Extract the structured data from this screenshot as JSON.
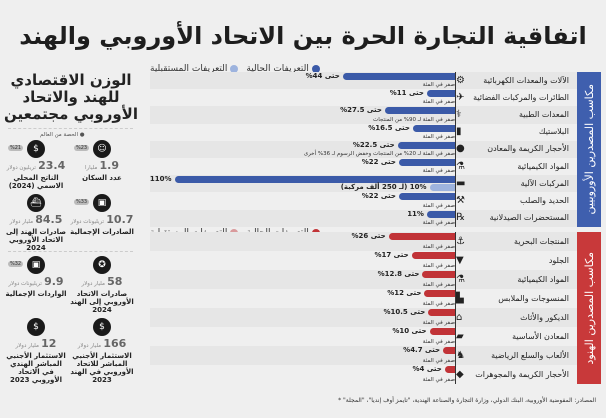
{
  "title": "اتفاقية التجارة الحرة بين الاتحاد الأوروبي والهند",
  "legend": {
    "current": "التعريفات الحالية",
    "future": "التعريفات المستقبلية"
  },
  "colors": {
    "eu_current": "#3b5aa8",
    "eu_future": "#9db3de",
    "in_current": "#c13337",
    "in_future": "#d99a9c"
  },
  "chart_data": [
    {
      "type": "bar",
      "orientation": "horizontal",
      "group": "مكاسب المصدرين الأوروبيين",
      "unit": "%",
      "categories": [
        "الآلات والمعدات الكهربائية",
        "الطائرات والمركبات الفضائية",
        "المعدات الطبية",
        "البلاستيك",
        "الأحجار الكريمة والمعادن",
        "المواد الكيميائية",
        "المركبات الآلية",
        "الحديد والصلب",
        "المستحضرات الصيدلانية"
      ],
      "icons": [
        "gear-icon",
        "airplane-icon",
        "medical-icon",
        "plastic-icon",
        "gem-icon",
        "flask-icon",
        "car-icon",
        "steel-icon",
        "pharma-icon"
      ],
      "series": [
        {
          "name": "التعريفات الحالية",
          "values": [
            44,
            11,
            27.5,
            16.5,
            22.5,
            22,
            110,
            22,
            11
          ],
          "labels": [
            "حتى 44%",
            "حتى 11%",
            "حتى 27.5%",
            "حتى 16.5%",
            "حتى 22.5%",
            "حتى 22%",
            "110%",
            "حتى 22%",
            "11%"
          ]
        },
        {
          "name": "التعريفات المستقبلية",
          "values": [
            0,
            0,
            0,
            0,
            0,
            0,
            10,
            0,
            0
          ],
          "labels": [
            "صفر في المئة",
            "صفر في المئة",
            "صفر في المئة لـ 90% من المنتجات",
            "صفر في المئة",
            "صفر في المئة لـ 20% من المنتجات وخفض الرسوم لـ 36% أخرى",
            "صفر في المئة",
            "10% (لـ 250 ألف مركبة)",
            "صفر في المئة",
            "صفر في المئة"
          ]
        }
      ]
    },
    {
      "type": "bar",
      "orientation": "horizontal",
      "group": "مكاسب المصدرين الهنود",
      "unit": "%",
      "categories": [
        "المنتجات البحرية",
        "الجلود",
        "المواد الكيميائية",
        "المنسوجات والملابس",
        "الديكور والأثاث",
        "المعادن الأساسية",
        "الألعاب والسلع الرياضية",
        "الأحجار الكريمة والمجوهرات"
      ],
      "icons": [
        "anchor-icon",
        "leather-icon",
        "flask-icon",
        "shirt-icon",
        "house-icon",
        "metal-bar-icon",
        "toys-icon",
        "diamond-icon"
      ],
      "series": [
        {
          "name": "التعريفات الحالية",
          "values": [
            26,
            17,
            12.8,
            12,
            10.5,
            10,
            4.7,
            4
          ],
          "labels": [
            "حتى 26%",
            "حتى 17%",
            "حتى 12.8%",
            "حتى 12%",
            "حتى 10.5%",
            "حتى 10%",
            "حتى 4.7%",
            "حتى 4%"
          ]
        },
        {
          "name": "التعريفات المستقبلية",
          "values": [
            0,
            0,
            0,
            0,
            0,
            0,
            0,
            0
          ],
          "labels": [
            "صفر في المئة",
            "صفر في المئة",
            "صفر في المئة",
            "صفر في المئة",
            "صفر في المئة",
            "صفر في المئة",
            "صفر في المئة",
            "صفر في المئة"
          ]
        }
      ]
    }
  ],
  "left": {
    "title": "الوزن الاقتصادي للهند والاتحاد الأوروبي مجتمعين",
    "share_legend": "الحصة من العالم",
    "stats": [
      {
        "num": "1.9",
        "unit": "مليارا",
        "label": "عدد السكان",
        "badge": "%23",
        "icon": "people-icon"
      },
      {
        "num": "23.4",
        "unit": "تريليون دولار",
        "label": "الناتج المحلي الاسمي (2024)",
        "badge": "%21",
        "icon": "money-icon"
      },
      {
        "num": "10.7",
        "unit": "تريليونات دولار",
        "label": "الصادرات الإجمالية",
        "badge": "%33",
        "icon": "box-icon"
      },
      {
        "num": "84.5",
        "unit": "مليار دولار",
        "label": "صادرات الهند إلى الاتحاد الأوروبي 2024",
        "badge": "",
        "icon": "ship-icon"
      },
      {
        "num": "58",
        "unit": "مليار دولار",
        "label": "صادرات الاتحاد الأوروبي إلى الهند 2024",
        "badge": "",
        "icon": "eu-stars-icon"
      },
      {
        "num": "9.9",
        "unit": "تريليونات دولار",
        "label": "الواردات الإجمالية",
        "badge": "%32",
        "icon": "box-icon"
      },
      {
        "num": "166",
        "unit": "مليار دولار",
        "label": "الاستثمار الأجنبي المباشر للاتحاد الأوروبي في الهند 2023",
        "badge": "",
        "icon": "money-bag-icon"
      },
      {
        "num": "12",
        "unit": "مليار دولار",
        "label": "الاستثمار الأجنبي المباشر الهندي في الاتحاد الأوروبي 2023",
        "badge": "",
        "icon": "money-bag-icon"
      }
    ]
  },
  "source": "المصادر: المفوضية الأوروبية، البنك الدولي، وزارة التجارة والصناعة الهندية، \"تايمز أوف إنديا\"، \"المجلة\" *"
}
